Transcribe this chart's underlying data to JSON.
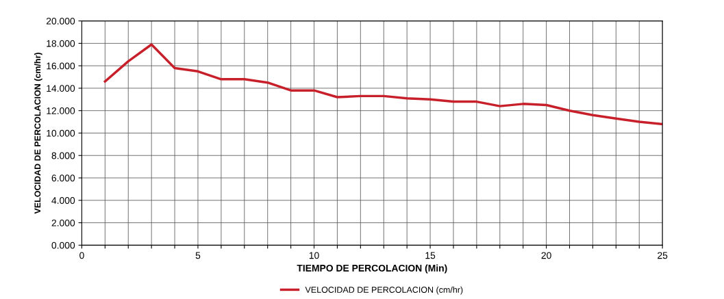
{
  "chart_data": {
    "type": "line",
    "xlabel": "TIEMPO DE PERCOLACION (Min)",
    "ylabel": "VELOCIDAD DE PERCOLACION (cm/hr)",
    "x": [
      1,
      2,
      3,
      4,
      5,
      6,
      7,
      8,
      9,
      10,
      11,
      12,
      13,
      14,
      15,
      16,
      17,
      18,
      19,
      20,
      21,
      22,
      23,
      24,
      25
    ],
    "series": [
      {
        "name": "VELOCIDAD DE PERCOLACION (cm/hr)",
        "color": "#c8202a",
        "values": [
          14.6,
          16.4,
          17.9,
          15.8,
          15.5,
          14.8,
          14.8,
          14.5,
          13.8,
          13.8,
          13.2,
          13.3,
          13.3,
          13.1,
          13.0,
          12.8,
          12.8,
          12.4,
          12.6,
          12.5,
          12.0,
          11.6,
          11.3,
          11.0,
          10.8
        ]
      }
    ],
    "xlim": [
      0,
      25
    ],
    "ylim": [
      0,
      20
    ],
    "xticks": [
      0,
      {
        "value": 1,
        "label": null
      },
      {
        "value": 2,
        "label": null
      },
      {
        "value": 3,
        "label": null
      },
      {
        "value": 4,
        "label": null
      },
      5,
      {
        "value": 6,
        "label": null
      },
      {
        "value": 7,
        "label": null
      },
      {
        "value": 8,
        "label": null
      },
      {
        "value": 9,
        "label": null
      },
      10,
      {
        "value": 11,
        "label": null
      },
      {
        "value": 12,
        "label": null
      },
      {
        "value": 13,
        "label": null
      },
      {
        "value": 14,
        "label": null
      },
      15,
      {
        "value": 16,
        "label": null
      },
      {
        "value": 17,
        "label": null
      },
      {
        "value": 18,
        "label": null
      },
      {
        "value": 19,
        "label": null
      },
      20,
      {
        "value": 21,
        "label": null
      },
      {
        "value": 22,
        "label": null
      },
      {
        "value": 23,
        "label": null
      },
      {
        "value": 24,
        "label": null
      },
      25
    ],
    "yticks": [
      {
        "value": 0,
        "label": "0.000"
      },
      {
        "value": 2,
        "label": "2.000"
      },
      {
        "value": 4,
        "label": "4.000"
      },
      {
        "value": 6,
        "label": "6.000"
      },
      {
        "value": 8,
        "label": "8.000"
      },
      {
        "value": 10,
        "label": "10.000"
      },
      {
        "value": 12,
        "label": "12.000"
      },
      {
        "value": 14,
        "label": "14.000"
      },
      {
        "value": 16,
        "label": "16.000"
      },
      {
        "value": 18,
        "label": "18.000"
      },
      {
        "value": 20,
        "label": "20.000"
      }
    ],
    "grid": true,
    "legend": "bottom",
    "marker": "none",
    "line_style": "solid"
  }
}
